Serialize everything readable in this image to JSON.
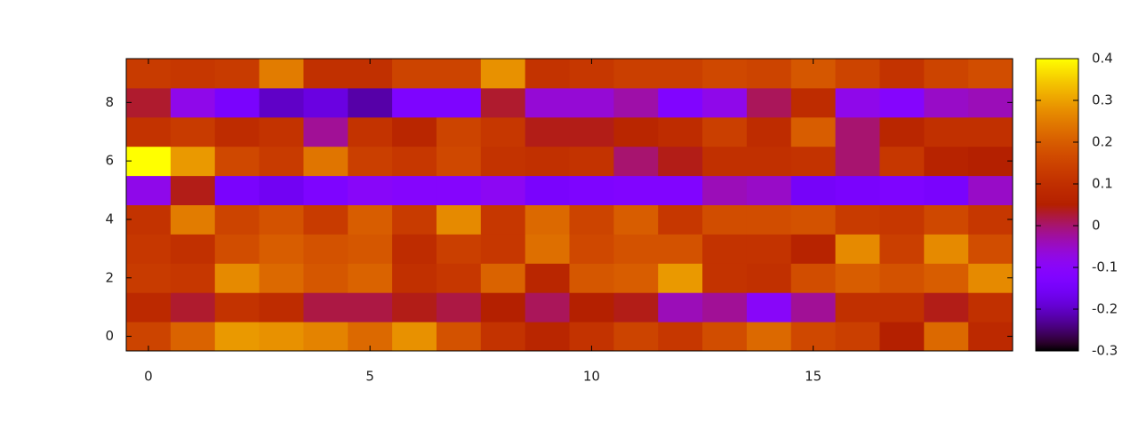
{
  "chart_data": {
    "type": "heatmap",
    "xlim": [
      -0.5,
      19.5
    ],
    "xticks": [
      0,
      5,
      10,
      15
    ],
    "ylim": [
      -0.5,
      9.5
    ],
    "yticks": [
      0,
      2,
      4,
      6,
      8
    ],
    "zlim": [
      -0.3,
      0.4
    ],
    "zticks": [
      -0.3,
      -0.2,
      -0.1,
      0,
      0.1,
      0.2,
      0.3,
      0.4
    ],
    "z": [
      [
        0.15,
        0.21,
        0.29,
        0.28,
        0.26,
        0.22,
        0.28,
        0.18,
        0.11,
        0.07,
        0.11,
        0.15,
        0.12,
        0.17,
        0.22,
        0.16,
        0.14,
        0.05,
        0.22,
        0.08
      ],
      [
        0.08,
        0.03,
        0.11,
        0.09,
        0.02,
        0.02,
        0.04,
        0.02,
        0.05,
        0.01,
        0.05,
        0.04,
        -0.04,
        -0.02,
        -0.1,
        -0.02,
        0.1,
        0.1,
        0.04,
        0.1
      ],
      [
        0.13,
        0.12,
        0.27,
        0.22,
        0.19,
        0.21,
        0.1,
        0.12,
        0.21,
        0.07,
        0.19,
        0.2,
        0.29,
        0.11,
        0.1,
        0.17,
        0.2,
        0.18,
        0.2,
        0.27
      ],
      [
        0.12,
        0.1,
        0.17,
        0.2,
        0.18,
        0.19,
        0.09,
        0.14,
        0.12,
        0.23,
        0.16,
        0.18,
        0.18,
        0.11,
        0.11,
        0.06,
        0.27,
        0.14,
        0.27,
        0.17
      ],
      [
        0.11,
        0.25,
        0.15,
        0.18,
        0.13,
        0.2,
        0.13,
        0.27,
        0.12,
        0.22,
        0.15,
        0.2,
        0.12,
        0.17,
        0.17,
        0.18,
        0.13,
        0.12,
        0.16,
        0.12
      ],
      [
        -0.08,
        0.04,
        -0.14,
        -0.16,
        -0.13,
        -0.1,
        -0.11,
        -0.11,
        -0.09,
        -0.14,
        -0.13,
        -0.12,
        -0.12,
        -0.04,
        -0.05,
        -0.15,
        -0.14,
        -0.13,
        -0.14,
        -0.05
      ],
      [
        0.4,
        0.29,
        0.16,
        0.13,
        0.24,
        0.14,
        0.12,
        0.16,
        0.11,
        0.1,
        0.11,
        0.0,
        0.04,
        0.1,
        0.1,
        0.11,
        0.0,
        0.12,
        0.06,
        0.05
      ],
      [
        0.11,
        0.13,
        0.09,
        0.11,
        -0.02,
        0.11,
        0.07,
        0.15,
        0.12,
        0.04,
        0.04,
        0.07,
        0.09,
        0.14,
        0.09,
        0.2,
        0.0,
        0.07,
        0.1,
        0.1
      ],
      [
        0.03,
        -0.08,
        -0.14,
        -0.2,
        -0.18,
        -0.22,
        -0.13,
        -0.13,
        0.03,
        -0.06,
        -0.06,
        -0.03,
        -0.12,
        -0.08,
        0.01,
        0.09,
        -0.08,
        -0.11,
        -0.05,
        -0.04
      ],
      [
        0.13,
        0.12,
        0.13,
        0.25,
        0.1,
        0.1,
        0.15,
        0.15,
        0.28,
        0.11,
        0.12,
        0.14,
        0.14,
        0.16,
        0.15,
        0.19,
        0.15,
        0.11,
        0.15,
        0.17
      ]
    ]
  }
}
